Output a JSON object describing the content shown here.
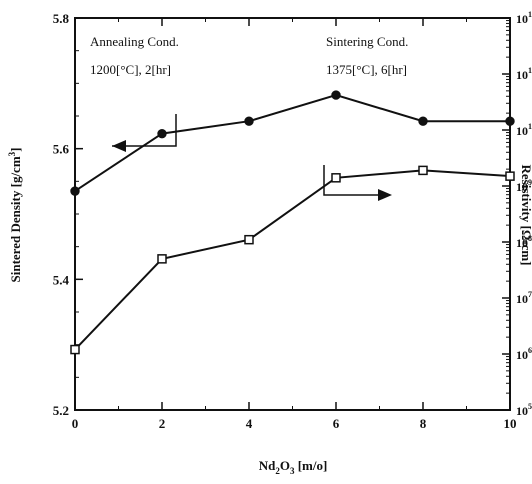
{
  "chart_data": {
    "type": "line",
    "title": "",
    "xlabel": "Nd2O3 [m/o]",
    "xlabel_parts": [
      "Nd",
      "2",
      "O",
      "3",
      " [m/o]"
    ],
    "ylabel_left": "Sintered Density [g/cm3]",
    "ylabel_left_parts": [
      "Sintered Density [g/cm",
      "3",
      "]"
    ],
    "ylabel_right": "Resistivity [Ω-cm]",
    "xlim": [
      0,
      10
    ],
    "ylim_left": [
      5.2,
      5.8
    ],
    "ylim_right": [
      100000.0,
      1000000000000.0
    ],
    "right_scale": "log",
    "x_ticks": [
      "0",
      "2",
      "4",
      "6",
      "8",
      "10"
    ],
    "y_left_ticks": [
      "5.2",
      "5.4",
      "5.6",
      "5.8"
    ],
    "y_right_ticks": [
      {
        "base": "10",
        "exp": "5"
      },
      {
        "base": "10",
        "exp": "6"
      },
      {
        "base": "10",
        "exp": "7"
      },
      {
        "base": "10",
        "exp": "8"
      },
      {
        "base": "10",
        "exp": "9"
      },
      {
        "base": "10",
        "exp": "10"
      },
      {
        "base": "10",
        "exp": "11"
      },
      {
        "base": "10",
        "exp": "12"
      }
    ],
    "grid": false,
    "series": [
      {
        "axis": "left",
        "marker": "filled-circle",
        "x": [
          0,
          2,
          4,
          6,
          8,
          10
        ],
        "y": [
          5.535,
          5.623,
          5.642,
          5.682,
          5.642,
          5.642
        ]
      },
      {
        "axis": "right",
        "marker": "open-square",
        "x": [
          0,
          2,
          4,
          6,
          8,
          10
        ],
        "y": [
          1200000.0,
          50000000.0,
          110000000.0,
          1400000000.0,
          1900000000.0,
          1500000000.0
        ]
      }
    ],
    "annotations": {
      "left_title": "Annealing Cond.",
      "left_cond": "1200[°C],  2[hr]",
      "right_title": "Sintering  Cond.",
      "right_cond": "1375[°C], 6[hr]"
    }
  }
}
